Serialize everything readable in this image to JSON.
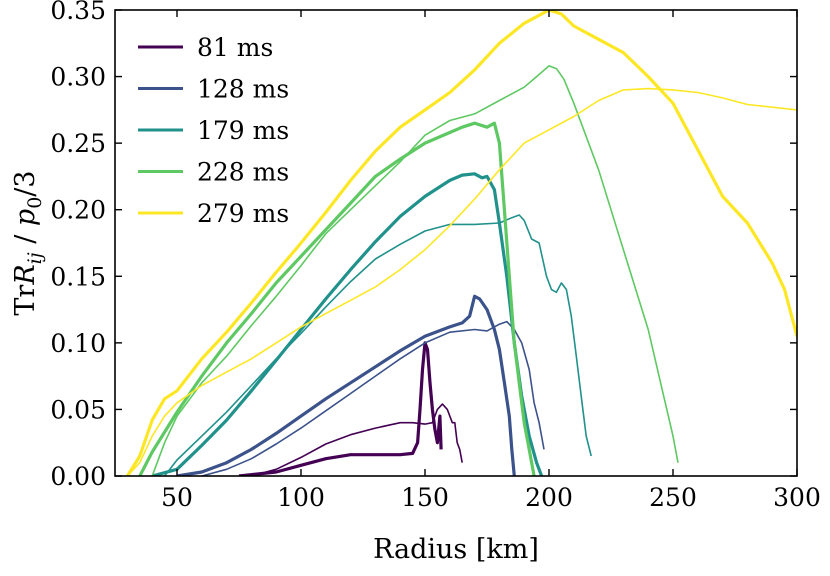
{
  "chart_data": {
    "type": "line",
    "title": "",
    "xlabel": "Radius [km]",
    "ylabel_parts": {
      "tr": "Tr",
      "r": "R",
      "sub": "ij",
      "slash": " / ",
      "p": "p",
      "p_sub": "0",
      "div": "/3"
    },
    "xlim": [
      25,
      300
    ],
    "ylim": [
      0.0,
      0.35
    ],
    "x_ticks": [
      50,
      100,
      150,
      200,
      250,
      300
    ],
    "x_tick_labels": [
      "50",
      "100",
      "150",
      "200",
      "250",
      "300"
    ],
    "y_ticks": [
      0.0,
      0.05,
      0.1,
      0.15,
      0.2,
      0.25,
      0.3,
      0.35
    ],
    "y_tick_labels": [
      "0.00",
      "0.05",
      "0.10",
      "0.15",
      "0.20",
      "0.25",
      "0.30",
      "0.35"
    ],
    "legend_position": "top-left",
    "series": [
      {
        "name": "81 ms",
        "color": "#440154",
        "thick": [
          [
            75,
            0.0
          ],
          [
            90,
            0.003
          ],
          [
            100,
            0.008
          ],
          [
            110,
            0.013
          ],
          [
            120,
            0.016
          ],
          [
            130,
            0.016
          ],
          [
            140,
            0.016
          ],
          [
            145,
            0.017
          ],
          [
            147,
            0.025
          ],
          [
            148,
            0.05
          ],
          [
            149,
            0.08
          ],
          [
            150,
            0.1
          ],
          [
            151,
            0.095
          ],
          [
            152,
            0.07
          ],
          [
            153,
            0.05
          ],
          [
            154,
            0.035
          ],
          [
            155,
            0.025
          ],
          [
            156,
            0.045
          ],
          [
            156.5,
            0.02
          ]
        ],
        "thin": [
          [
            80,
            0.0
          ],
          [
            90,
            0.005
          ],
          [
            100,
            0.014
          ],
          [
            110,
            0.024
          ],
          [
            120,
            0.031
          ],
          [
            130,
            0.036
          ],
          [
            140,
            0.04
          ],
          [
            145,
            0.04
          ],
          [
            150,
            0.039
          ],
          [
            153,
            0.04
          ],
          [
            155,
            0.05
          ],
          [
            157,
            0.054
          ],
          [
            159,
            0.05
          ],
          [
            161,
            0.04
          ],
          [
            162,
            0.04
          ],
          [
            163,
            0.025
          ],
          [
            164,
            0.02
          ],
          [
            165,
            0.01
          ]
        ]
      },
      {
        "name": "128 ms",
        "color": "#3b528b",
        "thick": [
          [
            50,
            0.0
          ],
          [
            60,
            0.003
          ],
          [
            70,
            0.01
          ],
          [
            80,
            0.02
          ],
          [
            90,
            0.032
          ],
          [
            100,
            0.045
          ],
          [
            110,
            0.058
          ],
          [
            120,
            0.07
          ],
          [
            130,
            0.082
          ],
          [
            140,
            0.094
          ],
          [
            150,
            0.105
          ],
          [
            160,
            0.112
          ],
          [
            165,
            0.115
          ],
          [
            168,
            0.12
          ],
          [
            170,
            0.135
          ],
          [
            172,
            0.133
          ],
          [
            175,
            0.125
          ],
          [
            178,
            0.11
          ],
          [
            180,
            0.095
          ],
          [
            182,
            0.07
          ],
          [
            184,
            0.045
          ],
          [
            185,
            0.02
          ],
          [
            186,
            0.0
          ]
        ],
        "thin": [
          [
            60,
            0.0
          ],
          [
            70,
            0.005
          ],
          [
            80,
            0.013
          ],
          [
            90,
            0.024
          ],
          [
            100,
            0.036
          ],
          [
            110,
            0.049
          ],
          [
            120,
            0.062
          ],
          [
            130,
            0.075
          ],
          [
            140,
            0.088
          ],
          [
            150,
            0.1
          ],
          [
            160,
            0.108
          ],
          [
            170,
            0.11
          ],
          [
            175,
            0.109
          ],
          [
            180,
            0.114
          ],
          [
            183,
            0.116
          ],
          [
            186,
            0.11
          ],
          [
            189,
            0.1
          ],
          [
            192,
            0.08
          ],
          [
            194,
            0.055
          ],
          [
            196,
            0.04
          ],
          [
            198,
            0.02
          ]
        ]
      },
      {
        "name": "179 ms",
        "color": "#21918c",
        "thick": [
          [
            40,
            0.0
          ],
          [
            50,
            0.005
          ],
          [
            60,
            0.023
          ],
          [
            70,
            0.042
          ],
          [
            80,
            0.064
          ],
          [
            90,
            0.087
          ],
          [
            100,
            0.11
          ],
          [
            110,
            0.133
          ],
          [
            120,
            0.155
          ],
          [
            130,
            0.176
          ],
          [
            140,
            0.195
          ],
          [
            150,
            0.21
          ],
          [
            160,
            0.222
          ],
          [
            165,
            0.226
          ],
          [
            170,
            0.227
          ],
          [
            173,
            0.224
          ],
          [
            175,
            0.225
          ],
          [
            178,
            0.215
          ],
          [
            180,
            0.19
          ],
          [
            183,
            0.15
          ],
          [
            186,
            0.1
          ],
          [
            189,
            0.06
          ],
          [
            192,
            0.03
          ],
          [
            195,
            0.01
          ],
          [
            197,
            0.0
          ]
        ],
        "thin": [
          [
            45,
            0.0
          ],
          [
            50,
            0.012
          ],
          [
            60,
            0.03
          ],
          [
            70,
            0.048
          ],
          [
            80,
            0.068
          ],
          [
            90,
            0.088
          ],
          [
            100,
            0.107
          ],
          [
            110,
            0.127
          ],
          [
            120,
            0.146
          ],
          [
            130,
            0.163
          ],
          [
            140,
            0.174
          ],
          [
            150,
            0.184
          ],
          [
            160,
            0.189
          ],
          [
            170,
            0.189
          ],
          [
            180,
            0.19
          ],
          [
            185,
            0.194
          ],
          [
            188,
            0.196
          ],
          [
            190,
            0.192
          ],
          [
            193,
            0.178
          ],
          [
            196,
            0.175
          ],
          [
            199,
            0.15
          ],
          [
            201,
            0.14
          ],
          [
            203,
            0.138
          ],
          [
            205,
            0.145
          ],
          [
            207,
            0.14
          ],
          [
            209,
            0.12
          ],
          [
            211,
            0.09
          ],
          [
            213,
            0.06
          ],
          [
            215,
            0.03
          ],
          [
            217,
            0.015
          ]
        ]
      },
      {
        "name": "228 ms",
        "color": "#5ec962",
        "thick": [
          [
            35,
            0.0
          ],
          [
            40,
            0.018
          ],
          [
            45,
            0.033
          ],
          [
            50,
            0.048
          ],
          [
            60,
            0.075
          ],
          [
            70,
            0.1
          ],
          [
            80,
            0.122
          ],
          [
            90,
            0.145
          ],
          [
            100,
            0.165
          ],
          [
            110,
            0.185
          ],
          [
            120,
            0.205
          ],
          [
            130,
            0.225
          ],
          [
            140,
            0.238
          ],
          [
            150,
            0.25
          ],
          [
            160,
            0.258
          ],
          [
            165,
            0.262
          ],
          [
            170,
            0.265
          ],
          [
            175,
            0.262
          ],
          [
            178,
            0.265
          ],
          [
            180,
            0.25
          ],
          [
            182,
            0.2
          ],
          [
            184,
            0.15
          ],
          [
            186,
            0.1
          ],
          [
            188,
            0.07
          ],
          [
            190,
            0.04
          ],
          [
            192,
            0.02
          ],
          [
            194,
            0.0
          ]
        ],
        "thin": [
          [
            40,
            0.0
          ],
          [
            45,
            0.025
          ],
          [
            50,
            0.045
          ],
          [
            60,
            0.07
          ],
          [
            70,
            0.09
          ],
          [
            80,
            0.113
          ],
          [
            90,
            0.135
          ],
          [
            100,
            0.158
          ],
          [
            110,
            0.182
          ],
          [
            120,
            0.2
          ],
          [
            130,
            0.218
          ],
          [
            140,
            0.236
          ],
          [
            150,
            0.256
          ],
          [
            160,
            0.267
          ],
          [
            170,
            0.272
          ],
          [
            180,
            0.282
          ],
          [
            190,
            0.292
          ],
          [
            195,
            0.3
          ],
          [
            200,
            0.308
          ],
          [
            203,
            0.306
          ],
          [
            206,
            0.298
          ],
          [
            210,
            0.28
          ],
          [
            220,
            0.23
          ],
          [
            230,
            0.17
          ],
          [
            240,
            0.11
          ],
          [
            245,
            0.07
          ],
          [
            250,
            0.03
          ],
          [
            252,
            0.01
          ]
        ]
      },
      {
        "name": "279 ms",
        "color": "#fde725",
        "thick": [
          [
            30,
            0.0
          ],
          [
            35,
            0.015
          ],
          [
            40,
            0.042
          ],
          [
            45,
            0.058
          ],
          [
            50,
            0.064
          ],
          [
            60,
            0.088
          ],
          [
            70,
            0.108
          ],
          [
            80,
            0.13
          ],
          [
            90,
            0.153
          ],
          [
            100,
            0.175
          ],
          [
            110,
            0.198
          ],
          [
            120,
            0.222
          ],
          [
            130,
            0.244
          ],
          [
            140,
            0.262
          ],
          [
            150,
            0.275
          ],
          [
            160,
            0.288
          ],
          [
            170,
            0.305
          ],
          [
            180,
            0.325
          ],
          [
            190,
            0.34
          ],
          [
            195,
            0.345
          ],
          [
            200,
            0.35
          ],
          [
            205,
            0.347
          ],
          [
            210,
            0.338
          ],
          [
            220,
            0.328
          ],
          [
            230,
            0.318
          ],
          [
            240,
            0.3
          ],
          [
            250,
            0.28
          ],
          [
            260,
            0.245
          ],
          [
            270,
            0.21
          ],
          [
            280,
            0.19
          ],
          [
            290,
            0.16
          ],
          [
            295,
            0.14
          ],
          [
            300,
            0.105
          ]
        ],
        "thin": [
          [
            30,
            0.0
          ],
          [
            35,
            0.01
          ],
          [
            40,
            0.03
          ],
          [
            45,
            0.045
          ],
          [
            50,
            0.055
          ],
          [
            60,
            0.068
          ],
          [
            70,
            0.078
          ],
          [
            80,
            0.088
          ],
          [
            90,
            0.1
          ],
          [
            100,
            0.112
          ],
          [
            110,
            0.122
          ],
          [
            120,
            0.132
          ],
          [
            130,
            0.142
          ],
          [
            140,
            0.155
          ],
          [
            150,
            0.17
          ],
          [
            160,
            0.188
          ],
          [
            170,
            0.208
          ],
          [
            180,
            0.23
          ],
          [
            190,
            0.25
          ],
          [
            200,
            0.26
          ],
          [
            210,
            0.27
          ],
          [
            220,
            0.282
          ],
          [
            230,
            0.29
          ],
          [
            240,
            0.291
          ],
          [
            250,
            0.29
          ],
          [
            260,
            0.288
          ],
          [
            270,
            0.284
          ],
          [
            280,
            0.279
          ],
          [
            290,
            0.277
          ],
          [
            300,
            0.275
          ]
        ]
      }
    ]
  }
}
